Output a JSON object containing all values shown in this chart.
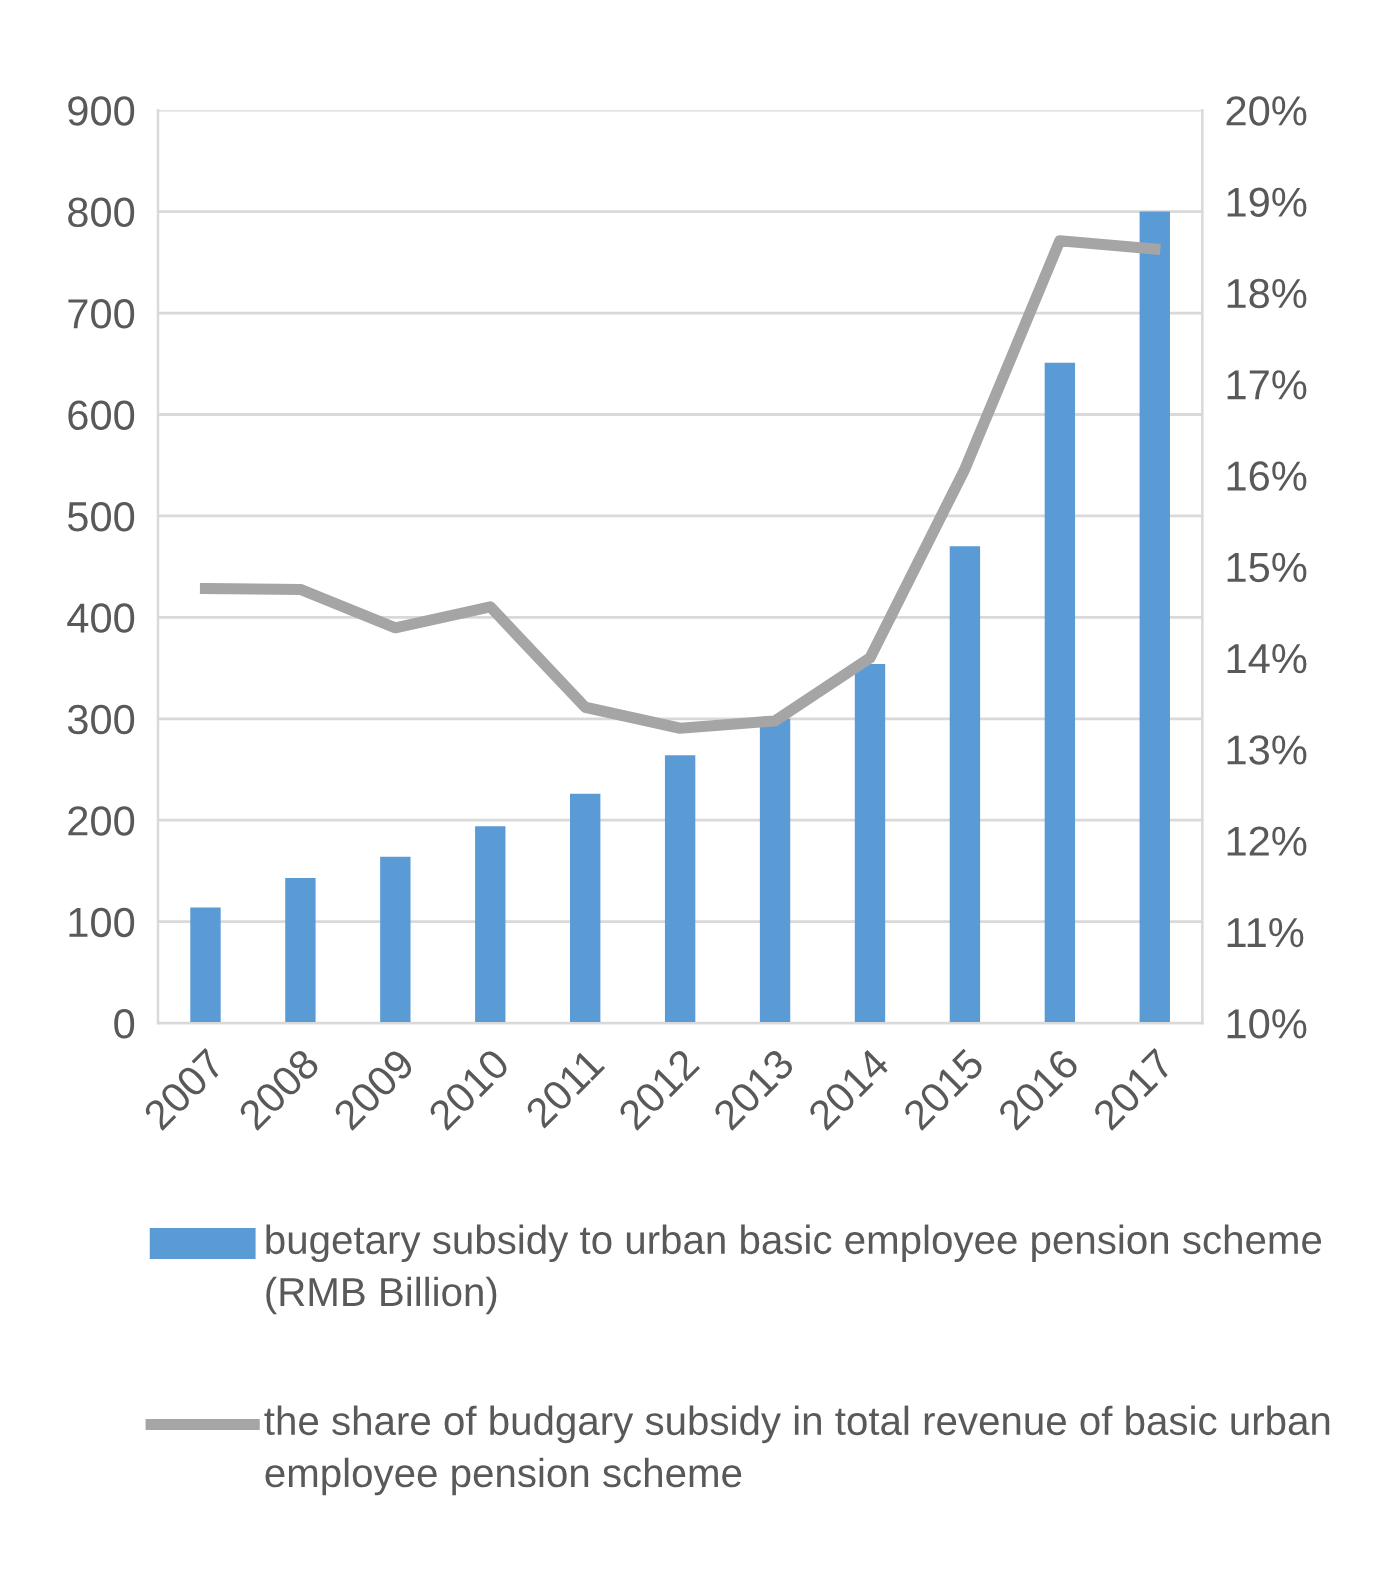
{
  "chart_data": {
    "type": "bar",
    "categories": [
      "2007",
      "2008",
      "2009",
      "2010",
      "2011",
      "2012",
      "2013",
      "2014",
      "2015",
      "2016",
      "2017"
    ],
    "series": [
      {
        "name": "bugetary subsidy to urban basic employee pension scheme (RMB Billion)",
        "color": "#5b9bd5",
        "values": [
          114,
          143,
          164,
          194,
          226,
          264,
          300,
          354,
          470,
          651,
          800
        ]
      },
      {
        "name": "the share of budgary subsidy in total revenue of basic urban employee pension scheme",
        "color": "#a5a5a5",
        "type": "line",
        "axis": "y2",
        "values": [
          14.76,
          14.75,
          14.33,
          14.56,
          13.46,
          13.23,
          13.31,
          14.0,
          16.07,
          18.57,
          18.48
        ]
      }
    ],
    "ylim": [
      0,
      900
    ],
    "yticks": [
      0,
      100,
      200,
      300,
      400,
      500,
      600,
      700,
      800,
      900
    ],
    "y2lim": [
      10,
      20
    ],
    "y2ticks": [
      {
        "value": 10,
        "label": "10%"
      },
      {
        "value": 11,
        "label": "11%"
      },
      {
        "value": 12,
        "label": "12%"
      },
      {
        "value": 13,
        "label": "13%"
      },
      {
        "value": 14,
        "label": "14%"
      },
      {
        "value": 15,
        "label": "15%"
      },
      {
        "value": 16,
        "label": "16%"
      },
      {
        "value": 17,
        "label": "17%"
      },
      {
        "value": 18,
        "label": "18%"
      },
      {
        "value": 19,
        "label": "19%"
      },
      {
        "value": 20,
        "label": "20%"
      }
    ],
    "grid": "y",
    "legend": "bottom",
    "marker": "none",
    "line_style": "solid"
  }
}
